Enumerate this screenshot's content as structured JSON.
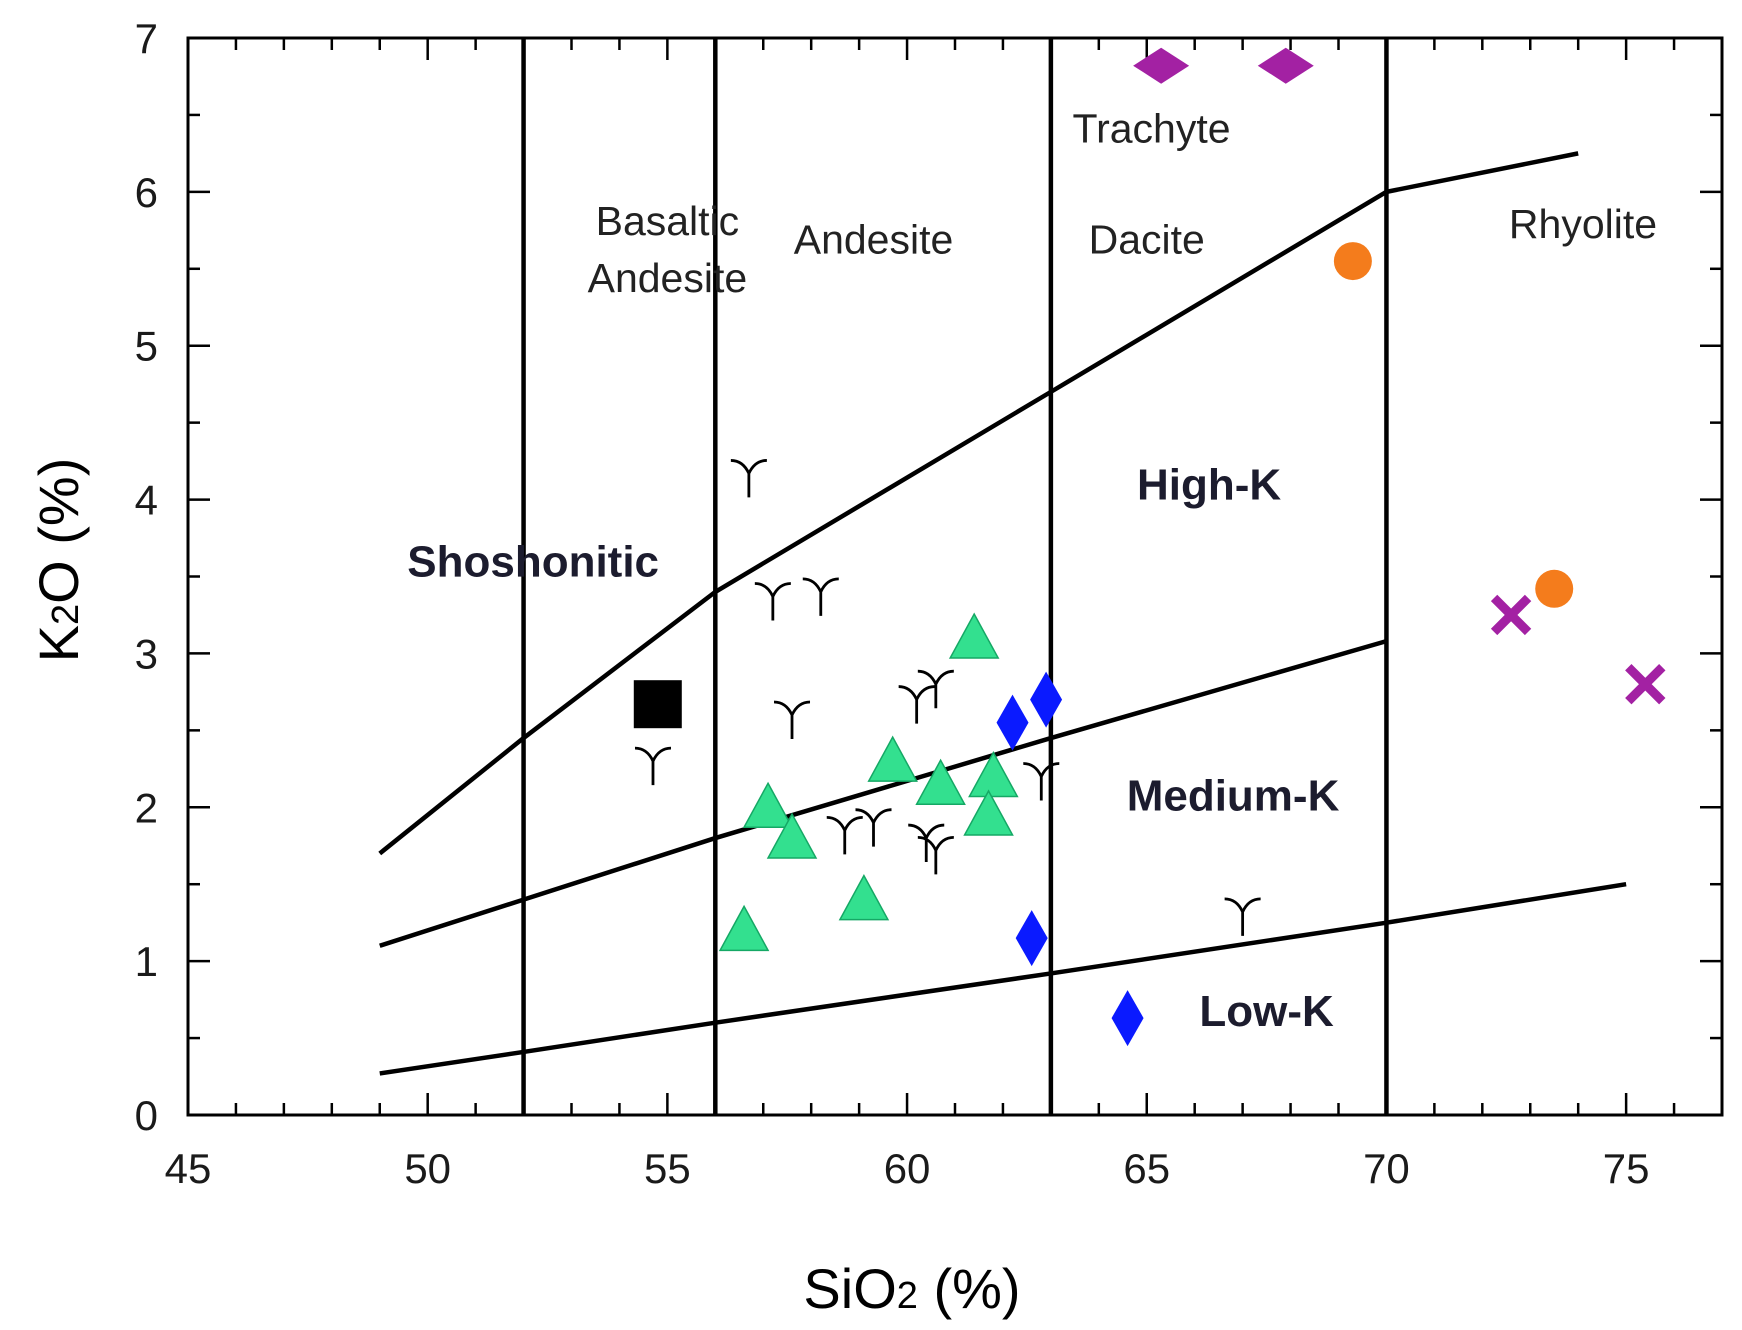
{
  "chart_data": {
    "type": "scatter",
    "title": "",
    "xlabel": {
      "main": "SiO",
      "sub": "2",
      "tail": " (%)"
    },
    "ylabel": {
      "main": "K",
      "sub": "2",
      "tail": "O (%)"
    },
    "xlim": [
      45,
      77
    ],
    "ylim": [
      0,
      7
    ],
    "x_ticks": [
      45,
      50,
      55,
      60,
      65,
      70,
      75
    ],
    "x_minor_step": 1,
    "y_ticks": [
      0,
      1,
      2,
      3,
      4,
      5,
      6,
      7
    ],
    "y_minor_step": 0.5,
    "vertical_boundaries": [
      52,
      56,
      63,
      70
    ],
    "series_boundaries": [
      {
        "name": "shoshonitic-highK",
        "points": [
          [
            49,
            1.7
          ],
          [
            52,
            2.45
          ],
          [
            56,
            3.4
          ],
          [
            63,
            4.7
          ],
          [
            70,
            6.0
          ],
          [
            74,
            6.25
          ]
        ]
      },
      {
        "name": "highK-mediumK",
        "points": [
          [
            49,
            1.1
          ],
          [
            52,
            1.4
          ],
          [
            56,
            1.8
          ],
          [
            63,
            2.45
          ],
          [
            70,
            3.08
          ]
        ]
      },
      {
        "name": "mediumK-lowK",
        "points": [
          [
            49,
            0.27
          ],
          [
            52,
            0.41
          ],
          [
            56,
            0.6
          ],
          [
            63,
            0.92
          ],
          [
            70,
            1.25
          ],
          [
            75,
            1.5
          ]
        ]
      }
    ],
    "field_labels": [
      {
        "text": "Basaltic",
        "x": 55.0,
        "y": 5.72
      },
      {
        "text": "Andesite",
        "x": 55.0,
        "y": 5.35
      },
      {
        "text": "Andesite",
        "x": 59.3,
        "y": 5.6
      },
      {
        "text": "Trachyte",
        "x": 65.1,
        "y": 6.32
      },
      {
        "text": "Dacite",
        "x": 65.0,
        "y": 5.6
      },
      {
        "text": "Rhyolite",
        "x": 74.1,
        "y": 5.7
      }
    ],
    "series_labels": [
      {
        "text": "Shoshonitic",
        "x": 52.2,
        "y": 3.5
      },
      {
        "text": "High-K",
        "x": 66.3,
        "y": 4.0
      },
      {
        "text": "Medium-K",
        "x": 66.8,
        "y": 1.98
      },
      {
        "text": "Low-K",
        "x": 67.5,
        "y": 0.58
      }
    ],
    "series": [
      {
        "name": "tri-marker",
        "marker": "Y",
        "color": "#000000",
        "points": [
          [
            56.7,
            4.17
          ],
          [
            57.2,
            3.37
          ],
          [
            58.2,
            3.4
          ],
          [
            57.6,
            2.6
          ],
          [
            60.2,
            2.7
          ],
          [
            60.6,
            2.8
          ],
          [
            54.7,
            2.3
          ],
          [
            58.7,
            1.85
          ],
          [
            59.3,
            1.9
          ],
          [
            60.4,
            1.8
          ],
          [
            60.6,
            1.72
          ],
          [
            62.8,
            2.2
          ],
          [
            67.0,
            1.32
          ]
        ]
      },
      {
        "name": "green-triangle",
        "marker": "triangle",
        "color": "#33e08f",
        "points": [
          [
            61.4,
            3.1
          ],
          [
            59.7,
            2.3
          ],
          [
            60.7,
            2.15
          ],
          [
            61.8,
            2.2
          ],
          [
            61.7,
            1.95
          ],
          [
            57.1,
            2.0
          ],
          [
            57.6,
            1.8
          ],
          [
            59.1,
            1.4
          ],
          [
            56.6,
            1.2
          ]
        ]
      },
      {
        "name": "blue-diamond",
        "marker": "diamond",
        "color": "#0a1aff",
        "points": [
          [
            62.2,
            2.55
          ],
          [
            62.9,
            2.7
          ],
          [
            62.6,
            1.15
          ],
          [
            64.6,
            0.63
          ]
        ]
      },
      {
        "name": "purple-diamond",
        "marker": "diamond-wide",
        "color": "#a321a3",
        "points": [
          [
            65.3,
            6.82
          ],
          [
            67.9,
            6.82
          ]
        ]
      },
      {
        "name": "orange-circle",
        "marker": "circle",
        "color": "#f47c1c",
        "points": [
          [
            69.3,
            5.55
          ],
          [
            73.5,
            3.42
          ]
        ]
      },
      {
        "name": "purple-cross",
        "marker": "x",
        "color": "#a321a3",
        "points": [
          [
            72.6,
            3.25
          ],
          [
            75.4,
            2.8
          ]
        ]
      },
      {
        "name": "black-square",
        "marker": "square",
        "color": "#000000",
        "points": [
          [
            54.8,
            2.67
          ]
        ]
      }
    ]
  }
}
